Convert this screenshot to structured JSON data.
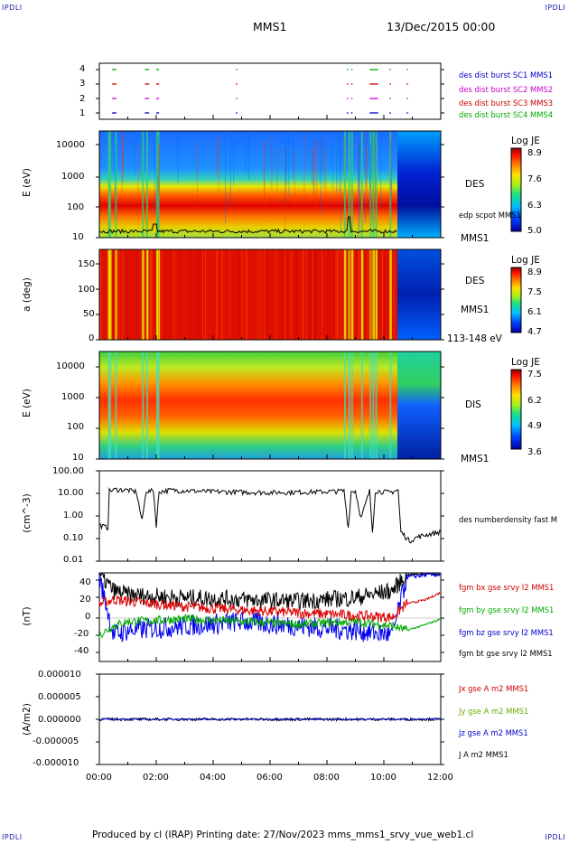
{
  "header": {
    "corner_left_top": "IPDLI",
    "corner_right_top": "IPDLI",
    "corner_left_bottom": "IPDLI",
    "corner_right_bottom": "IPDLI",
    "spacecraft": "MMS1",
    "date": "13/Dec/2015 00:00"
  },
  "panels": {
    "burst": {
      "yticks": [
        "4",
        "3",
        "2",
        "1"
      ],
      "labels": [
        {
          "text": "des dist burst SC1 MMS1",
          "color": "#0000cc"
        },
        {
          "text": "des dist burst SC2 MMS2",
          "color": "#cc00cc"
        },
        {
          "text": "des dist burst SC3 MMS3",
          "color": "#cc0000"
        },
        {
          "text": "des dist burst SC4 MMS4",
          "color": "#00aa00"
        }
      ]
    },
    "des_energy": {
      "ylabel": "E (eV)",
      "yticks": [
        "10000",
        "1000",
        "100",
        "10"
      ],
      "instrument": "DES",
      "overlay": "edp scpot MMS1",
      "sc": "MMS1",
      "cb_title": "Log JE",
      "cb_ticks": [
        "8.9",
        "7.6",
        "6.3",
        "5.0"
      ]
    },
    "pitch": {
      "ylabel": "a (deg)",
      "yticks": [
        "150",
        "100",
        "50",
        "0"
      ],
      "instrument": "DES",
      "sc": "MMS1",
      "range": "113-148 eV",
      "cb_title": "Log JE",
      "cb_ticks": [
        "8.9",
        "7.5",
        "6.1",
        "4.7"
      ]
    },
    "dis_energy": {
      "ylabel": "E (eV)",
      "yticks": [
        "10000",
        "1000",
        "100",
        "10"
      ],
      "instrument": "DIS",
      "sc": "MMS1",
      "cb_title": "Log JE",
      "cb_ticks": [
        "7.5",
        "6.2",
        "4.9",
        "3.6"
      ]
    },
    "density": {
      "ylabel": "(cm^-3)",
      "yticks": [
        "100.00",
        "10.00",
        "1.00",
        "0.10",
        "0.01"
      ],
      "label": "des numberdensity fast M"
    },
    "bfield": {
      "ylabel": "(nT)",
      "yticks": [
        "40",
        "20",
        "0",
        "-20",
        "-40"
      ],
      "labels": [
        {
          "text": "fgm bx gse srvy l2 MMS1",
          "color": "#cc0000"
        },
        {
          "text": "fgm by gse srvy l2 MMS1",
          "color": "#00aa00"
        },
        {
          "text": "fgm bz gse srvy l2 MMS1",
          "color": "#0000cc"
        },
        {
          "text": "fgm bt gse srvy l2 MMS1",
          "color": "#000000"
        }
      ]
    },
    "current": {
      "ylabel": "(A/m2)",
      "yticks": [
        "0.000010",
        "0.000005",
        "0.000000",
        "-0.000005",
        "-0.000010"
      ],
      "labels": [
        {
          "text": "Jx gse A m2 MMS1",
          "color": "#cc0000"
        },
        {
          "text": "Jy gse A m2 MMS1",
          "color": "#66aa00"
        },
        {
          "text": "Jz gse A m2 MMS1",
          "color": "#0000cc"
        },
        {
          "text": "J A m2 MMS1",
          "color": "#000000"
        }
      ]
    }
  },
  "xaxis": {
    "ticks": [
      "00:00",
      "02:00",
      "04:00",
      "06:00",
      "08:00",
      "10:00",
      "12:00"
    ]
  },
  "footer": "Produced by cl (IRAP)   Printing date: 27/Nov/2023   mms_mms1_srvy_vue_web1.cl",
  "chart_data": [
    {
      "type": "scatter",
      "title": "des dist burst",
      "x_range": [
        "00:00",
        "12:00"
      ],
      "yticks": [
        1,
        2,
        3,
        4
      ],
      "burst_intervals_hours": [
        [
          0.45,
          0.6
        ],
        [
          1.6,
          1.75
        ],
        [
          2.0,
          2.1
        ],
        [
          4.8,
          4.85
        ],
        [
          8.7,
          8.75
        ],
        [
          8.85,
          8.9
        ],
        [
          9.5,
          9.8
        ],
        [
          10.2,
          10.25
        ],
        [
          10.8,
          10.85
        ]
      ]
    },
    {
      "type": "heatmap",
      "title": "DES",
      "ylabel": "E (eV)",
      "y_scale": "log",
      "y_range": [
        10,
        30000
      ],
      "colorbar": "Log JE",
      "colorbar_range": [
        5.0,
        8.9
      ],
      "peak_energy_eV": 120
    },
    {
      "type": "heatmap",
      "title": "DES 113-148 eV",
      "ylabel": "a (deg)",
      "y_range": [
        0,
        180
      ],
      "colorbar": "Log JE",
      "colorbar_range": [
        4.7,
        8.9
      ]
    },
    {
      "type": "heatmap",
      "title": "DIS",
      "ylabel": "E (eV)",
      "y_scale": "log",
      "y_range": [
        10,
        20000
      ],
      "colorbar": "Log JE",
      "colorbar_range": [
        3.6,
        7.5
      ],
      "peak_energy_eV": 900
    },
    {
      "type": "line",
      "ylabel": "(cm^-3)",
      "y_scale": "log",
      "ylim": [
        0.01,
        100
      ],
      "series": [
        {
          "name": "des numberdensity fast M",
          "x_hours": [
            0.0,
            0.3,
            0.35,
            0.6,
            1.0,
            1.3,
            1.5,
            1.65,
            1.75,
            1.9,
            2.0,
            2.1,
            2.5,
            4,
            6,
            8,
            8.6,
            8.75,
            8.85,
            9.0,
            9.2,
            9.5,
            9.6,
            9.7,
            10.0,
            10.2,
            10.5,
            10.6,
            10.9,
            11.2,
            11.5,
            12.0
          ],
          "y": [
            0.4,
            0.3,
            13,
            15,
            14,
            12,
            0.6,
            14,
            12,
            14,
            0.4,
            12,
            14,
            12,
            11,
            12,
            13,
            0.3,
            12,
            13,
            0.8,
            13,
            0.2,
            13,
            12,
            11,
            14,
            0.2,
            0.08,
            0.12,
            0.15,
            0.2
          ]
        }
      ]
    },
    {
      "type": "line",
      "ylabel": "(nT)",
      "ylim": [
        -50,
        50
      ],
      "series": [
        {
          "name": "fgm bx gse srvy l2 MMS1",
          "x_hours": [
            0,
            0.5,
            1,
            3,
            5,
            7,
            9,
            10.3,
            10.8,
            11.5,
            12
          ],
          "y": [
            15,
            20,
            18,
            12,
            8,
            5,
            2,
            0,
            15,
            20,
            28
          ]
        },
        {
          "name": "fgm by gse srvy l2 MMS1",
          "x_hours": [
            0,
            0.5,
            1,
            3,
            5,
            7,
            9,
            10.3,
            10.8,
            11.5,
            12
          ],
          "y": [
            -20,
            -10,
            -5,
            -2,
            -5,
            -8,
            -5,
            -10,
            -15,
            -8,
            -2
          ]
        },
        {
          "name": "fgm bz gse srvy l2 MMS1",
          "x_hours": [
            0,
            0.5,
            1,
            3,
            5,
            7,
            9,
            10.3,
            10.8,
            11.5,
            12
          ],
          "y": [
            45,
            -20,
            -15,
            -10,
            -5,
            -10,
            -15,
            -20,
            45,
            48,
            48
          ]
        },
        {
          "name": "fgm bt gse srvy l2 MMS1",
          "x_hours": [
            0,
            0.5,
            1,
            3,
            5,
            7,
            9,
            10.3,
            10.8,
            11.5,
            12
          ],
          "y": [
            48,
            30,
            25,
            22,
            20,
            18,
            22,
            30,
            48,
            50,
            48
          ]
        }
      ]
    },
    {
      "type": "line",
      "ylabel": "(A/m2)",
      "ylim": [
        -1e-05,
        1e-05
      ],
      "series": [
        {
          "name": "Jx gse A m2 MMS1",
          "x_hours": [
            0,
            12
          ],
          "y": [
            0,
            0
          ]
        },
        {
          "name": "Jy gse A m2 MMS1",
          "x_hours": [
            0,
            12
          ],
          "y": [
            0,
            0
          ]
        },
        {
          "name": "Jz gse A m2 MMS1",
          "x_hours": [
            0,
            12
          ],
          "y": [
            0,
            0
          ]
        },
        {
          "name": "J A m2 MMS1",
          "x_hours": [
            0,
            12
          ],
          "y": [
            0,
            0
          ]
        }
      ]
    }
  ]
}
